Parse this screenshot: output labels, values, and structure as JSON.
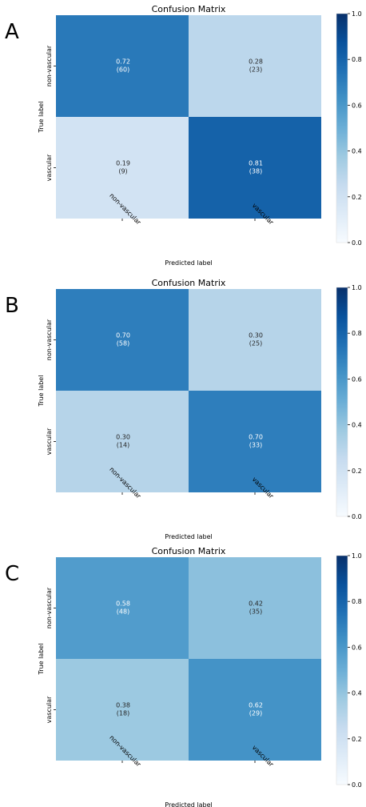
{
  "chart_data": [
    {
      "type": "heatmap",
      "panel": "A",
      "title": "Confusion Matrix",
      "xlabel": "Predicted label",
      "ylabel": "True label",
      "x_categories": [
        "non-vascular",
        "vascular"
      ],
      "y_categories": [
        "non-vascular",
        "vascular"
      ],
      "values": [
        [
          0.72,
          0.28
        ],
        [
          0.19,
          0.81
        ]
      ],
      "value_labels": [
        [
          "0.72",
          "0.28"
        ],
        [
          "0.19",
          "0.81"
        ]
      ],
      "count_labels": [
        [
          "(60)",
          "(23)"
        ],
        [
          "(9)",
          "(38)"
        ]
      ],
      "colorbar": {
        "range": [
          0.0,
          1.0
        ],
        "ticks": [
          "0.0",
          "0.2",
          "0.4",
          "0.6",
          "0.8",
          "1.0"
        ],
        "colormap": "Blues"
      }
    },
    {
      "type": "heatmap",
      "panel": "B",
      "title": "Confusion Matrix",
      "xlabel": "Predicted label",
      "ylabel": "True label",
      "x_categories": [
        "non-vascular",
        "vascular"
      ],
      "y_categories": [
        "non-vascular",
        "vascular"
      ],
      "values": [
        [
          0.7,
          0.3
        ],
        [
          0.3,
          0.7
        ]
      ],
      "value_labels": [
        [
          "0.70",
          "0.30"
        ],
        [
          "0.30",
          "0.70"
        ]
      ],
      "count_labels": [
        [
          "(58)",
          "(25)"
        ],
        [
          "(14)",
          "(33)"
        ]
      ],
      "colorbar": {
        "range": [
          0.0,
          1.0
        ],
        "ticks": [
          "0.0",
          "0.2",
          "0.4",
          "0.6",
          "0.8",
          "1.0"
        ],
        "colormap": "Blues"
      }
    },
    {
      "type": "heatmap",
      "panel": "C",
      "title": "Confusion Matrix",
      "xlabel": "Predicted label",
      "ylabel": "True label",
      "x_categories": [
        "non-vascular",
        "vascular"
      ],
      "y_categories": [
        "non-vascular",
        "vascular"
      ],
      "values": [
        [
          0.58,
          0.42
        ],
        [
          0.38,
          0.62
        ]
      ],
      "value_labels": [
        [
          "0.58",
          "0.42"
        ],
        [
          "0.38",
          "0.62"
        ]
      ],
      "count_labels": [
        [
          "(48)",
          "(35)"
        ],
        [
          "(18)",
          "(29)"
        ]
      ],
      "colorbar": {
        "range": [
          0.0,
          1.0
        ],
        "ticks": [
          "0.0",
          "0.2",
          "0.4",
          "0.6",
          "0.8",
          "1.0"
        ],
        "colormap": "Blues"
      }
    }
  ]
}
